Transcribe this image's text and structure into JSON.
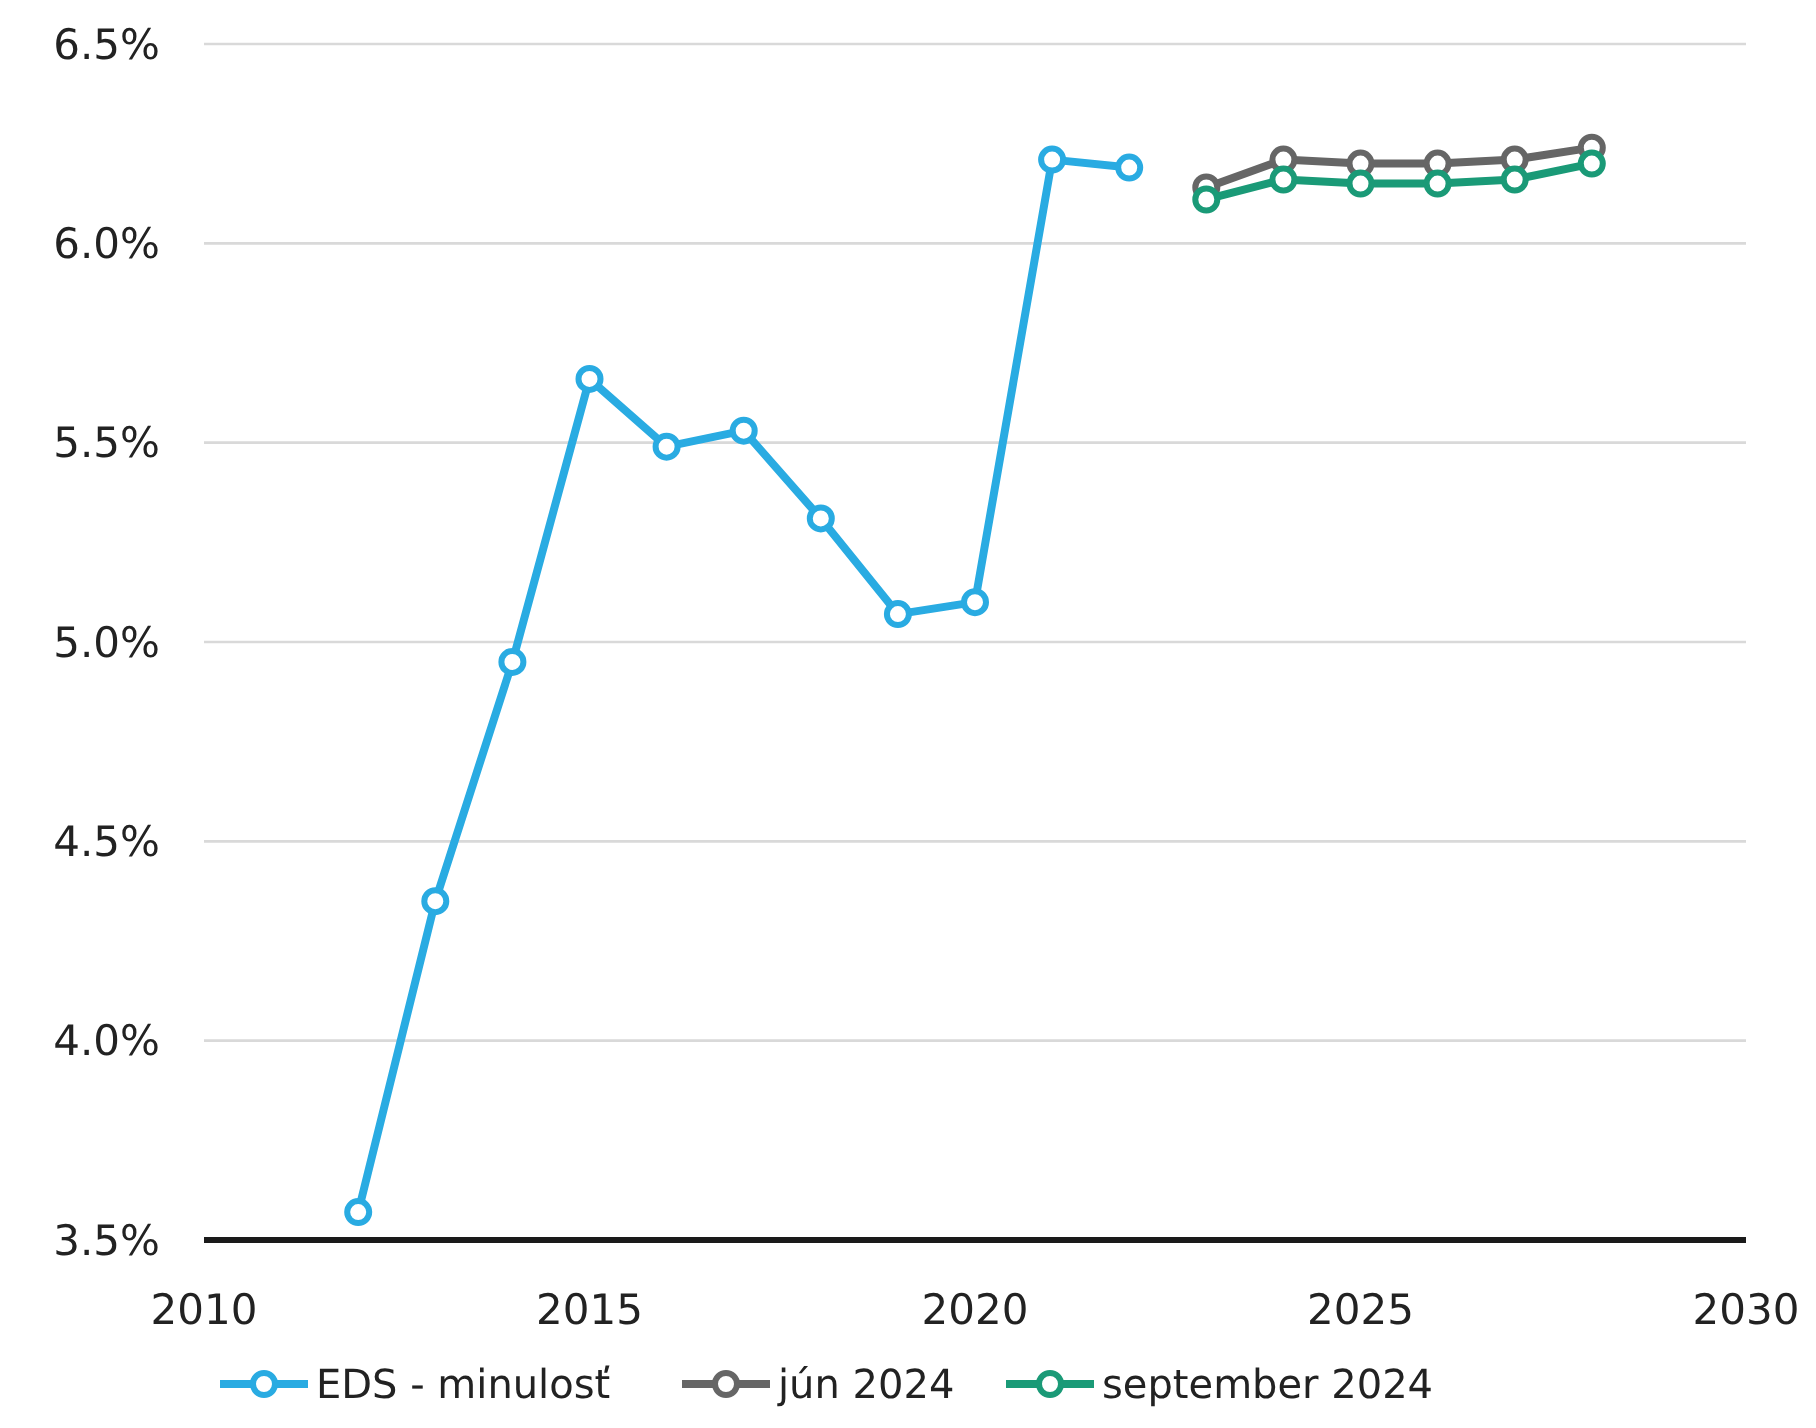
{
  "chart_data": {
    "type": "line",
    "xlim": [
      2010,
      2030
    ],
    "xticks": [
      2010,
      2015,
      2020,
      2025,
      2030
    ],
    "ylim": [
      3.5,
      6.5
    ],
    "yticks": [
      {
        "value": 3.5,
        "label": "3.5%"
      },
      {
        "value": 4.0,
        "label": "4.0%"
      },
      {
        "value": 4.5,
        "label": "4.5%"
      },
      {
        "value": 5.0,
        "label": "5.0%"
      },
      {
        "value": 5.5,
        "label": "5.5%"
      },
      {
        "value": 6.0,
        "label": "6.0%"
      },
      {
        "value": 6.5,
        "label": "6.5%"
      }
    ],
    "grid": "y",
    "legend": "bottom",
    "marker": "circle",
    "line_style": "solid",
    "series": [
      {
        "name": "EDS - minulosť",
        "color": "#29abe2",
        "x": [
          2012,
          2013,
          2014,
          2015,
          2016,
          2017,
          2018,
          2019,
          2020,
          2021,
          2022
        ],
        "values": [
          3.57,
          4.35,
          4.95,
          5.66,
          5.49,
          5.53,
          5.31,
          5.07,
          5.1,
          6.21,
          6.19
        ]
      },
      {
        "name": "jún 2024",
        "color": "#666666",
        "x": [
          2023,
          2024,
          2025,
          2026,
          2027,
          2028
        ],
        "values": [
          6.14,
          6.21,
          6.2,
          6.2,
          6.21,
          6.24
        ]
      },
      {
        "name": "september 2024",
        "color": "#1a9a77",
        "x": [
          2023,
          2024,
          2025,
          2026,
          2027,
          2028
        ],
        "values": [
          6.11,
          6.16,
          6.15,
          6.15,
          6.16,
          6.2
        ]
      }
    ]
  }
}
